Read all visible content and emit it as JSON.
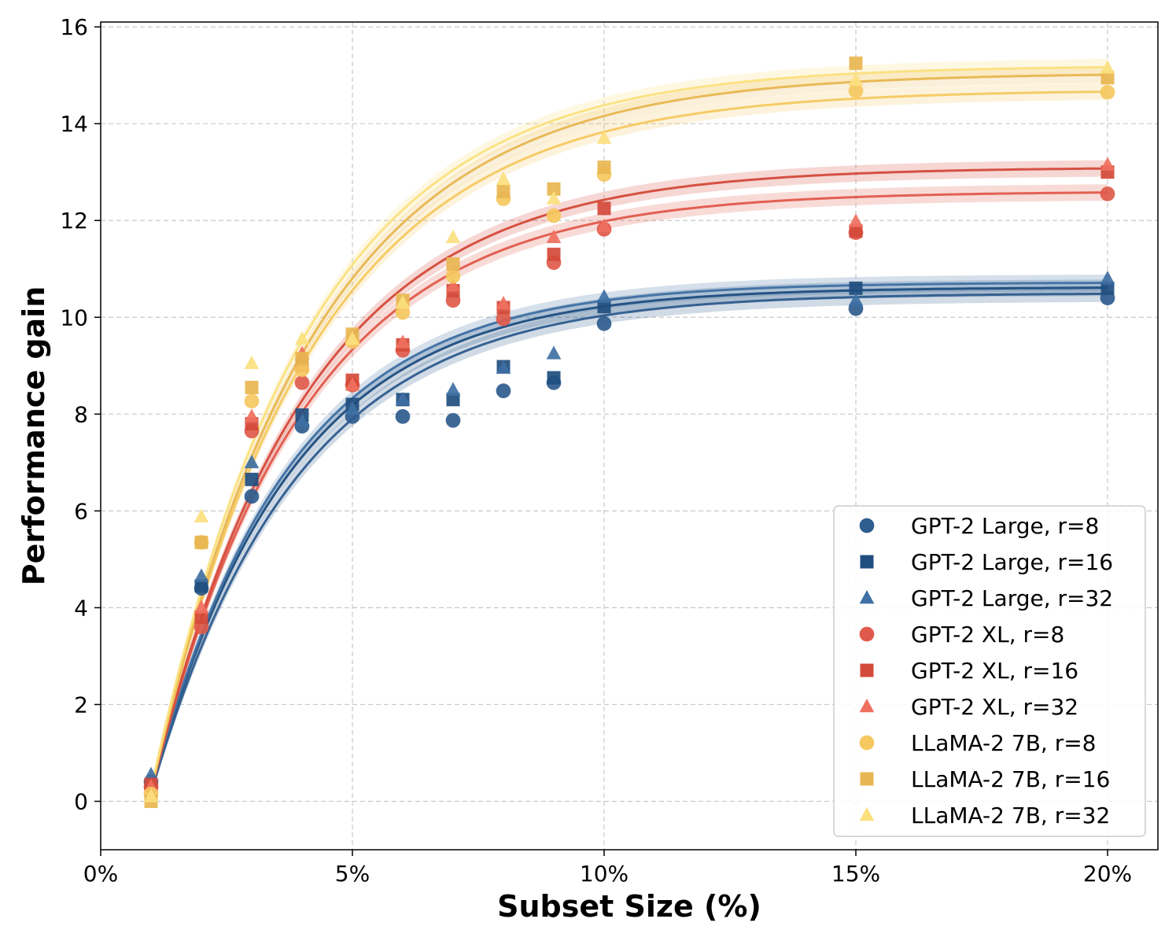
{
  "chart_data": {
    "type": "scatter",
    "title": "",
    "xlabel": "Subset Size (%)",
    "ylabel": "Performance gain",
    "xlim": [
      0,
      21
    ],
    "ylim": [
      -1,
      16.1
    ],
    "xticks": [
      0,
      5,
      10,
      15,
      20
    ],
    "xtick_labels": [
      "0%",
      "5%",
      "10%",
      "15%",
      "20%"
    ],
    "yticks": [
      0,
      2,
      4,
      6,
      8,
      10,
      12,
      14,
      16
    ],
    "ytick_labels": [
      "0",
      "2",
      "4",
      "6",
      "8",
      "10",
      "12",
      "14",
      "16"
    ],
    "grid": true,
    "legend_position": "bottom-right",
    "x": [
      1,
      2,
      3,
      4,
      5,
      6,
      7,
      8,
      9,
      10,
      15,
      20
    ],
    "series": [
      {
        "name": "GPT-2 Large, r=8",
        "marker": "circle",
        "color": "#2e5c8e",
        "values": [
          0.4,
          4.4,
          6.3,
          7.75,
          7.95,
          7.95,
          7.87,
          8.48,
          8.65,
          9.87,
          10.18,
          10.4
        ]
      },
      {
        "name": "GPT-2 Large, r=16",
        "marker": "square",
        "color": "#1f4e7f",
        "values": [
          0.35,
          4.45,
          6.65,
          7.98,
          8.2,
          8.3,
          8.3,
          8.98,
          8.75,
          10.22,
          10.6,
          10.6
        ]
      },
      {
        "name": "GPT-2 Large, r=32",
        "marker": "triangle",
        "color": "#3f70a3",
        "values": [
          0.55,
          4.65,
          7.0,
          7.85,
          8.1,
          8.3,
          8.5,
          8.95,
          9.25,
          10.42,
          10.35,
          10.8
        ]
      },
      {
        "name": "GPT-2 XL, r=8",
        "marker": "circle",
        "color": "#e05a4b",
        "values": [
          0.3,
          3.6,
          7.65,
          8.65,
          8.6,
          9.32,
          10.35,
          9.97,
          11.13,
          11.82,
          11.75,
          12.55
        ]
      },
      {
        "name": "GPT-2 XL, r=16",
        "marker": "square",
        "color": "#d44a3a",
        "values": [
          0.35,
          3.8,
          7.8,
          9.0,
          8.7,
          9.43,
          10.55,
          10.2,
          11.3,
          12.25,
          11.78,
          13.0
        ]
      },
      {
        "name": "GPT-2 XL, r=32",
        "marker": "triangle",
        "color": "#f07060",
        "values": [
          0.3,
          4.0,
          7.95,
          9.25,
          8.6,
          9.48,
          10.65,
          10.28,
          11.65,
          11.88,
          11.98,
          13.15
        ]
      },
      {
        "name": "LLaMA-2 7B, r=8",
        "marker": "circle",
        "color": "#f5c860",
        "values": [
          0.15,
          5.35,
          8.27,
          8.92,
          9.5,
          10.1,
          10.85,
          12.45,
          12.1,
          12.95,
          14.68,
          14.65
        ]
      },
      {
        "name": "LLaMA-2 7B, r=16",
        "marker": "square",
        "color": "#e8b650",
        "values": [
          0.0,
          5.35,
          8.55,
          9.15,
          9.65,
          10.35,
          11.1,
          12.6,
          12.65,
          13.1,
          15.25,
          14.95
        ]
      },
      {
        "name": "LLaMA-2 7B, r=32",
        "marker": "triangle",
        "color": "#fbe07e",
        "values": [
          0.1,
          5.88,
          9.05,
          9.55,
          9.55,
          10.3,
          11.65,
          12.85,
          12.45,
          13.7,
          14.9,
          15.15
        ]
      }
    ],
    "fit_curves": [
      {
        "name": "GPT-2 Large, r=8 fit",
        "color": "#2e5c8e",
        "model": "a*(1-exp(-(x-x0)/tau))",
        "a": 10.5,
        "x0": 0.95,
        "tau": 2.9
      },
      {
        "name": "GPT-2 Large, r=16 fit",
        "color": "#1f4e7f",
        "model": "a*(1-exp(-(x-x0)/tau))",
        "a": 10.62,
        "x0": 0.95,
        "tau": 2.75
      },
      {
        "name": "GPT-2 Large, r=32 fit",
        "color": "#3f70a3",
        "model": "a*(1-exp(-(x-x0)/tau))",
        "a": 10.72,
        "x0": 0.95,
        "tau": 2.7
      },
      {
        "name": "GPT-2 XL, r=8 fit",
        "color": "#e05a4b",
        "model": "a*(1-exp(-(x-x0)/tau))",
        "a": 12.6,
        "x0": 0.95,
        "tau": 3.0
      },
      {
        "name": "GPT-2 XL, r=16 fit",
        "color": "#d44a3a",
        "model": "a*(1-exp(-(x-x0)/tau))",
        "a": 13.1,
        "x0": 0.95,
        "tau": 3.05
      },
      {
        "name": "LLaMA-2 7B, r=8 fit",
        "color": "#f5c860",
        "model": "a*(1-exp(-(x-x0)/tau))",
        "a": 14.7,
        "x0": 0.95,
        "tau": 3.2
      },
      {
        "name": "LLaMA-2 7B, r=16 fit",
        "color": "#e8b650",
        "model": "a*(1-exp(-(x-x0)/tau))",
        "a": 15.05,
        "x0": 0.95,
        "tau": 3.2
      },
      {
        "name": "LLaMA-2 7B, r=32 fit",
        "color": "#fbe07e",
        "model": "a*(1-exp(-(x-x0)/tau))",
        "a": 15.2,
        "x0": 0.95,
        "tau": 3.1
      }
    ]
  }
}
